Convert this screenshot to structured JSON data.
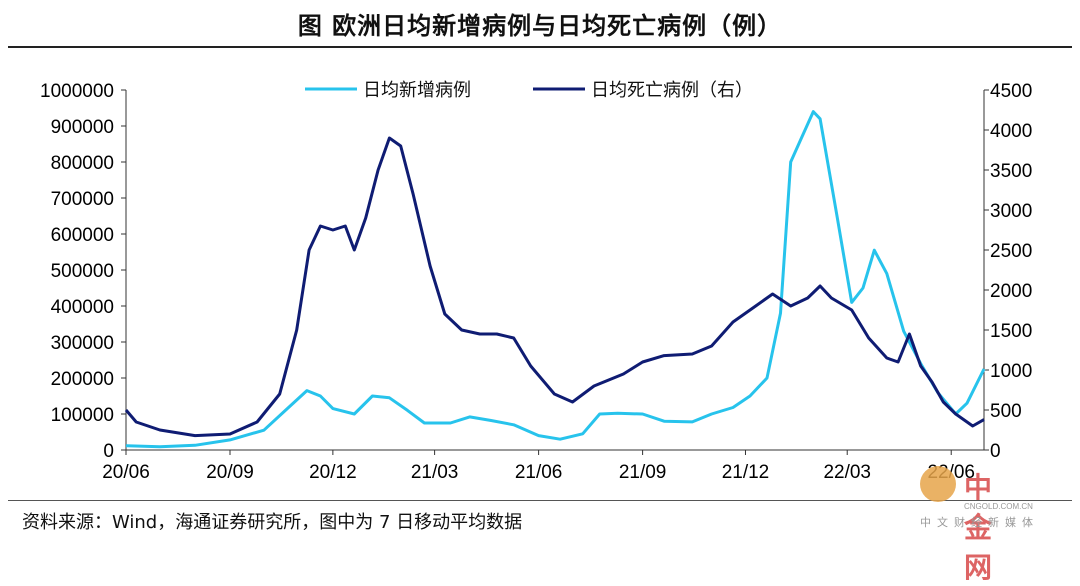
{
  "title": "图 欧洲日均新增病例与日均死亡病例（例）",
  "source": "资料来源：Wind，海通证券研究所，图中为 7 日移动平均数据",
  "watermark": {
    "name": "中金网",
    "url": "CNGOLD.COM.CN",
    "sub": "中文财经新媒体"
  },
  "colors": {
    "new_cases": "#27c3ec",
    "deaths": "#0f1c73"
  },
  "chart_data": {
    "type": "line",
    "x_ticks": [
      "20/06",
      "20/09",
      "20/12",
      "21/03",
      "21/06",
      "21/09",
      "21/12",
      "22/03",
      "22/06"
    ],
    "x_range": [
      "2020-06-01",
      "2022-06-30"
    ],
    "y_left_ticks": [
      "0",
      "100000",
      "200000",
      "300000",
      "400000",
      "500000",
      "600000",
      "700000",
      "800000",
      "900000",
      "1000000"
    ],
    "y_left_range": [
      0,
      1000000
    ],
    "y_right_ticks": [
      "0",
      "500",
      "1000",
      "1500",
      "2000",
      "2500",
      "3000",
      "3500",
      "4000",
      "4500"
    ],
    "y_right_range": [
      0,
      4500
    ],
    "legend_position": "top-center",
    "series": [
      {
        "name": "日均新增病例",
        "axis": "left",
        "points": [
          [
            "2020-06-01",
            12000
          ],
          [
            "2020-07-01",
            9000
          ],
          [
            "2020-08-01",
            13000
          ],
          [
            "2020-09-01",
            28000
          ],
          [
            "2020-10-01",
            55000
          ],
          [
            "2020-10-20",
            110000
          ],
          [
            "2020-11-08",
            165000
          ],
          [
            "2020-11-20",
            150000
          ],
          [
            "2020-12-01",
            115000
          ],
          [
            "2020-12-20",
            100000
          ],
          [
            "2021-01-05",
            150000
          ],
          [
            "2021-01-20",
            145000
          ],
          [
            "2021-02-05",
            110000
          ],
          [
            "2021-02-20",
            75000
          ],
          [
            "2021-03-15",
            75000
          ],
          [
            "2021-04-01",
            92000
          ],
          [
            "2021-04-20",
            82000
          ],
          [
            "2021-05-10",
            70000
          ],
          [
            "2021-06-01",
            40000
          ],
          [
            "2021-06-20",
            30000
          ],
          [
            "2021-07-10",
            45000
          ],
          [
            "2021-07-25",
            100000
          ],
          [
            "2021-08-10",
            102000
          ],
          [
            "2021-09-01",
            100000
          ],
          [
            "2021-09-20",
            80000
          ],
          [
            "2021-10-15",
            78000
          ],
          [
            "2021-11-01",
            100000
          ],
          [
            "2021-11-20",
            118000
          ],
          [
            "2021-12-05",
            150000
          ],
          [
            "2021-12-20",
            200000
          ],
          [
            "2022-01-01",
            380000
          ],
          [
            "2022-01-10",
            800000
          ],
          [
            "2022-01-20",
            870000
          ],
          [
            "2022-01-30",
            940000
          ],
          [
            "2022-02-05",
            920000
          ],
          [
            "2022-02-20",
            650000
          ],
          [
            "2022-03-05",
            410000
          ],
          [
            "2022-03-15",
            450000
          ],
          [
            "2022-03-25",
            555000
          ],
          [
            "2022-04-05",
            490000
          ],
          [
            "2022-04-20",
            330000
          ],
          [
            "2022-05-05",
            240000
          ],
          [
            "2022-05-20",
            160000
          ],
          [
            "2022-06-05",
            100000
          ],
          [
            "2022-06-15",
            130000
          ],
          [
            "2022-06-30",
            225000
          ]
        ]
      },
      {
        "name": "日均死亡病例（右）",
        "axis": "right",
        "points": [
          [
            "2020-06-01",
            500
          ],
          [
            "2020-06-10",
            350
          ],
          [
            "2020-07-01",
            250
          ],
          [
            "2020-08-01",
            180
          ],
          [
            "2020-09-01",
            200
          ],
          [
            "2020-09-25",
            350
          ],
          [
            "2020-10-15",
            700
          ],
          [
            "2020-10-30",
            1500
          ],
          [
            "2020-11-10",
            2500
          ],
          [
            "2020-11-20",
            2800
          ],
          [
            "2020-12-01",
            2750
          ],
          [
            "2020-12-12",
            2800
          ],
          [
            "2020-12-20",
            2500
          ],
          [
            "2020-12-30",
            2900
          ],
          [
            "2021-01-10",
            3500
          ],
          [
            "2021-01-20",
            3900
          ],
          [
            "2021-01-30",
            3800
          ],
          [
            "2021-02-10",
            3200
          ],
          [
            "2021-02-25",
            2300
          ],
          [
            "2021-03-10",
            1700
          ],
          [
            "2021-03-25",
            1500
          ],
          [
            "2021-04-10",
            1450
          ],
          [
            "2021-04-25",
            1450
          ],
          [
            "2021-05-10",
            1400
          ],
          [
            "2021-05-25",
            1050
          ],
          [
            "2021-06-15",
            700
          ],
          [
            "2021-07-01",
            600
          ],
          [
            "2021-07-20",
            800
          ],
          [
            "2021-08-15",
            950
          ],
          [
            "2021-09-01",
            1100
          ],
          [
            "2021-09-20",
            1180
          ],
          [
            "2021-10-15",
            1200
          ],
          [
            "2021-11-01",
            1300
          ],
          [
            "2021-11-20",
            1600
          ],
          [
            "2021-12-10",
            1800
          ],
          [
            "2021-12-25",
            1950
          ],
          [
            "2022-01-10",
            1800
          ],
          [
            "2022-01-25",
            1900
          ],
          [
            "2022-02-05",
            2050
          ],
          [
            "2022-02-15",
            1900
          ],
          [
            "2022-03-05",
            1750
          ],
          [
            "2022-03-20",
            1400
          ],
          [
            "2022-04-05",
            1150
          ],
          [
            "2022-04-15",
            1100
          ],
          [
            "2022-04-25",
            1450
          ],
          [
            "2022-05-05",
            1050
          ],
          [
            "2022-05-15",
            850
          ],
          [
            "2022-05-25",
            600
          ],
          [
            "2022-06-05",
            450
          ],
          [
            "2022-06-20",
            300
          ],
          [
            "2022-06-30",
            380
          ]
        ]
      }
    ]
  }
}
